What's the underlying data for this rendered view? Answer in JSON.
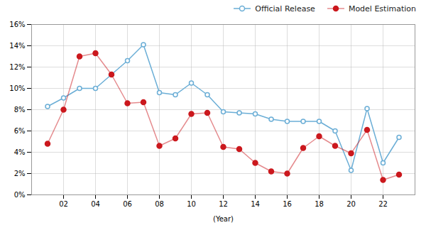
{
  "chart_data": {
    "type": "line",
    "xlabel": "(Year)",
    "x": [
      1,
      2,
      3,
      4,
      5,
      6,
      7,
      8,
      9,
      10,
      11,
      12,
      13,
      14,
      15,
      16,
      17,
      18,
      19,
      20,
      21,
      22,
      23
    ],
    "series": [
      {
        "name": "Official Release",
        "color": "#6baed6",
        "marker": "open_circle",
        "values": [
          0.083,
          0.091,
          0.1,
          0.1,
          0.113,
          0.126,
          0.141,
          0.096,
          0.094,
          0.105,
          0.094,
          0.078,
          0.077,
          0.076,
          0.071,
          0.069,
          0.069,
          0.069,
          0.06,
          0.023,
          0.081,
          0.03,
          0.054
        ]
      },
      {
        "name": "Model Estimation",
        "color": "#cb181d",
        "marker": "circle",
        "values": [
          0.048,
          0.08,
          0.13,
          0.133,
          0.113,
          0.086,
          0.087,
          0.046,
          0.053,
          0.076,
          0.077,
          0.045,
          0.043,
          0.03,
          0.022,
          0.02,
          0.044,
          0.055,
          0.046,
          0.039,
          0.061,
          0.014,
          0.019
        ]
      }
    ],
    "xlim": [
      0,
      24
    ],
    "xticks": [
      {
        "value": 2,
        "label": "02"
      },
      {
        "value": 4,
        "label": "04"
      },
      {
        "value": 6,
        "label": "06"
      },
      {
        "value": 8,
        "label": "08"
      },
      {
        "value": 10,
        "label": "10"
      },
      {
        "value": 12,
        "label": "12"
      },
      {
        "value": 14,
        "label": "14"
      },
      {
        "value": 16,
        "label": "16"
      },
      {
        "value": 18,
        "label": "18"
      },
      {
        "value": 20,
        "label": "20"
      },
      {
        "value": 22,
        "label": "22"
      }
    ],
    "ylim": [
      0,
      0.16
    ],
    "yticks": [
      {
        "value": 0.0,
        "label": "0%"
      },
      {
        "value": 0.02,
        "label": "2%"
      },
      {
        "value": 0.04,
        "label": "4%"
      },
      {
        "value": 0.06,
        "label": "6%"
      },
      {
        "value": 0.08,
        "label": "8%"
      },
      {
        "value": 0.1,
        "label": "10%"
      },
      {
        "value": 0.12,
        "label": "12%"
      },
      {
        "value": 0.14,
        "label": "14%"
      },
      {
        "value": 0.16,
        "label": "16%"
      }
    ],
    "grid": true,
    "legend": "upper right"
  }
}
